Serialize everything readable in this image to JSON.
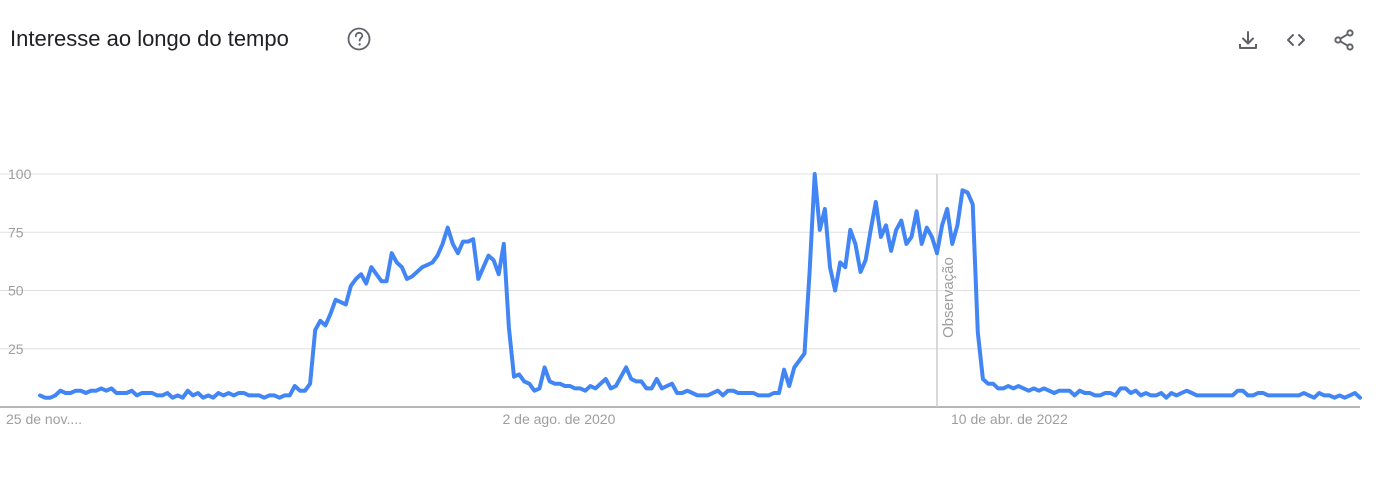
{
  "header": {
    "title": "Interesse ao longo do tempo",
    "help_icon": "help-circle-icon",
    "tools": [
      {
        "icon": "download-icon"
      },
      {
        "icon": "embed-code-icon"
      },
      {
        "icon": "share-icon"
      }
    ]
  },
  "colors": {
    "line": "#4285f4",
    "grid": "#e0e0e0",
    "axis": "#9e9e9e",
    "note": "#cccccc",
    "tick_text": "#9e9e9e",
    "title_text": "#202124",
    "icon": "#5f6368"
  },
  "chart_data": {
    "type": "line",
    "title": "Interesse ao longo do tempo",
    "xlabel": "",
    "ylabel": "",
    "ylim": [
      0,
      100
    ],
    "yticks": [
      25,
      50,
      75,
      100
    ],
    "grid": true,
    "x_start": "25 de nov. de 2018",
    "x_unit": "week",
    "x_tick_labels": [
      {
        "index": 0,
        "label": "25 de nov...."
      },
      {
        "index": 88,
        "label": "2 de ago. de 2020"
      },
      {
        "index": 176,
        "label": "10 de abr. de 2022"
      }
    ],
    "annotation": {
      "index": 176,
      "label": "Observação"
    },
    "series": [
      {
        "values": [
          5,
          4,
          4,
          5,
          7,
          6,
          6,
          7,
          7,
          6,
          7,
          7,
          8,
          7,
          8,
          6,
          6,
          6,
          7,
          5,
          6,
          6,
          6,
          5,
          5,
          6,
          4,
          5,
          4,
          7,
          5,
          6,
          4,
          5,
          4,
          6,
          5,
          6,
          5,
          6,
          6,
          5,
          5,
          5,
          4,
          5,
          5,
          4,
          5,
          5,
          9,
          7,
          7,
          10,
          33,
          37,
          35,
          40,
          46,
          45,
          44,
          52,
          55,
          57,
          53,
          60,
          57,
          54,
          54,
          66,
          62,
          60,
          55,
          56,
          58,
          60,
          61,
          62,
          65,
          70,
          77,
          70,
          66,
          71,
          71,
          72,
          55,
          60,
          65,
          63,
          57,
          70,
          34,
          13,
          14,
          11,
          10,
          7,
          8,
          17,
          11,
          10,
          10,
          9,
          9,
          8,
          8,
          7,
          9,
          8,
          10,
          12,
          8,
          9,
          13,
          17,
          12,
          11,
          11,
          8,
          8,
          12,
          8,
          9,
          10,
          6,
          6,
          7,
          6,
          5,
          5,
          5,
          6,
          7,
          5,
          7,
          7,
          6,
          6,
          6,
          6,
          5,
          5,
          5,
          6,
          6,
          16,
          9,
          17,
          20,
          23,
          58,
          100,
          76,
          85,
          60,
          50,
          62,
          60,
          76,
          70,
          58,
          63,
          76,
          88,
          73,
          78,
          67,
          76,
          80,
          70,
          73,
          84,
          70,
          77,
          73,
          66,
          78,
          85,
          70,
          78,
          93,
          92,
          87,
          32,
          12,
          10,
          10,
          8,
          8,
          9,
          8,
          9,
          8,
          7,
          8,
          7,
          8,
          7,
          6,
          7,
          7,
          7,
          5,
          7,
          6,
          6,
          5,
          5,
          6,
          6,
          5,
          8,
          8,
          6,
          7,
          5,
          6,
          5,
          5,
          6,
          4,
          6,
          5,
          6,
          7,
          6,
          5,
          5,
          5,
          5,
          5,
          5,
          5,
          5,
          7,
          7,
          5,
          5,
          6,
          6,
          5,
          5,
          5,
          5,
          5,
          5,
          5,
          6,
          5,
          4,
          6,
          5,
          5,
          4,
          5,
          4,
          5,
          6,
          4
        ]
      }
    ]
  }
}
